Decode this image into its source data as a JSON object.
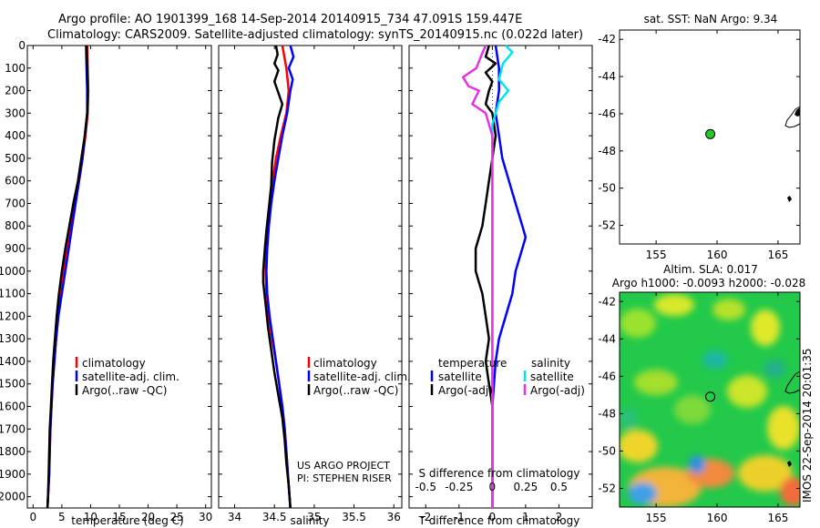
{
  "header": {
    "line1": "Argo profile: AO 1901399_168 14-Sep-2014 20140915_734 47.091S 159.447E",
    "line2": "Climatology: CARS2009. Satellite-adjusted climatology: synTS_20140915.nc (0.022d later)"
  },
  "colors": {
    "climatology": "#ff0000",
    "satellite": "#0000ff",
    "argo": "#000000",
    "salinity_satellite": "#00e5ee",
    "salinity_argo": "#e632e6",
    "argo_marker": "#22cc22"
  },
  "annotations": {
    "project": "US ARGO PROJECT",
    "pi": "PI: STEPHEN RISER",
    "s_diff_label": "S difference from climatology",
    "timestamp": "IMOS 22-Sep-2014 20:01:35"
  },
  "chart_data": [
    {
      "id": "temperature",
      "type": "line",
      "xlabel": "temperature (deg C)",
      "ylabel": "",
      "xlim": [
        -1,
        31
      ],
      "ylim": [
        2050,
        0
      ],
      "xticks": [
        0,
        5,
        10,
        15,
        20,
        25,
        30
      ],
      "yticks": [
        0,
        100,
        200,
        300,
        400,
        500,
        600,
        700,
        800,
        900,
        1000,
        1100,
        1200,
        1300,
        1400,
        1500,
        1600,
        1700,
        1800,
        1900,
        2000
      ],
      "legend": {
        "position": "lower-middle",
        "entries": [
          "climatology",
          "satellite-adj. clim.",
          "Argo(..raw -QC)"
        ]
      },
      "series": [
        {
          "name": "climatology",
          "color": "red",
          "points": [
            [
              9.4,
              0
            ],
            [
              9.5,
              100
            ],
            [
              9.6,
              200
            ],
            [
              9.5,
              300
            ],
            [
              9.1,
              400
            ],
            [
              8.6,
              500
            ],
            [
              8.0,
              600
            ],
            [
              7.3,
              700
            ],
            [
              6.6,
              800
            ],
            [
              6.0,
              900
            ],
            [
              5.3,
              1000
            ],
            [
              4.8,
              1100
            ],
            [
              4.3,
              1200
            ],
            [
              4.0,
              1300
            ],
            [
              3.7,
              1400
            ],
            [
              3.4,
              1500
            ],
            [
              3.2,
              1600
            ],
            [
              3.0,
              1700
            ],
            [
              2.9,
              1800
            ],
            [
              2.8,
              1900
            ],
            [
              2.6,
              2000
            ],
            [
              2.5,
              2050
            ]
          ]
        },
        {
          "name": "satellite-adj. clim.",
          "color": "blue",
          "points": [
            [
              9.2,
              0
            ],
            [
              9.3,
              100
            ],
            [
              9.4,
              200
            ],
            [
              9.4,
              300
            ],
            [
              9.0,
              400
            ],
            [
              8.6,
              500
            ],
            [
              8.0,
              600
            ],
            [
              7.4,
              700
            ],
            [
              6.8,
              800
            ],
            [
              6.2,
              900
            ],
            [
              5.6,
              1000
            ],
            [
              5.0,
              1100
            ],
            [
              4.4,
              1200
            ],
            [
              4.0,
              1300
            ],
            [
              3.7,
              1400
            ],
            [
              3.4,
              1500
            ],
            [
              3.2,
              1600
            ],
            [
              3.0,
              1700
            ],
            [
              2.9,
              1800
            ],
            [
              2.8,
              1900
            ],
            [
              2.6,
              2000
            ],
            [
              2.5,
              2050
            ]
          ]
        },
        {
          "name": "Argo(..raw -QC)",
          "color": "black",
          "points": [
            [
              9.3,
              0
            ],
            [
              9.4,
              100
            ],
            [
              9.5,
              200
            ],
            [
              9.4,
              300
            ],
            [
              9.0,
              400
            ],
            [
              8.4,
              500
            ],
            [
              7.8,
              600
            ],
            [
              7.0,
              700
            ],
            [
              6.3,
              800
            ],
            [
              5.6,
              900
            ],
            [
              5.0,
              1000
            ],
            [
              4.5,
              1100
            ],
            [
              4.1,
              1200
            ],
            [
              3.8,
              1300
            ],
            [
              3.5,
              1400
            ],
            [
              3.3,
              1500
            ],
            [
              3.1,
              1600
            ],
            [
              2.9,
              1700
            ],
            [
              2.8,
              1800
            ],
            [
              2.7,
              1900
            ],
            [
              2.6,
              2000
            ],
            [
              2.5,
              2050
            ]
          ]
        }
      ]
    },
    {
      "id": "salinity",
      "type": "line",
      "xlabel": "salinity",
      "ylabel": "",
      "xlim": [
        33.8,
        36.1
      ],
      "ylim": [
        2050,
        0
      ],
      "xticks": [
        34,
        34.5,
        35,
        35.5,
        36
      ],
      "legend": {
        "position": "lower-right",
        "entries": [
          "climatology",
          "satellite-adj. clim.",
          "Argo(..raw -QC)"
        ]
      },
      "series": [
        {
          "name": "climatology",
          "color": "red",
          "points": [
            [
              34.6,
              0
            ],
            [
              34.65,
              100
            ],
            [
              34.68,
              200
            ],
            [
              34.65,
              300
            ],
            [
              34.58,
              400
            ],
            [
              34.52,
              500
            ],
            [
              34.48,
              600
            ],
            [
              34.45,
              700
            ],
            [
              34.42,
              800
            ],
            [
              34.4,
              900
            ],
            [
              34.39,
              1000
            ],
            [
              34.4,
              1100
            ],
            [
              34.43,
              1200
            ],
            [
              34.47,
              1300
            ],
            [
              34.52,
              1400
            ],
            [
              34.56,
              1500
            ],
            [
              34.6,
              1600
            ],
            [
              34.63,
              1700
            ],
            [
              34.65,
              1800
            ],
            [
              34.67,
              1900
            ],
            [
              34.69,
              2000
            ],
            [
              34.7,
              2050
            ]
          ]
        },
        {
          "name": "satellite-adj. clim.",
          "color": "blue",
          "points": [
            [
              34.7,
              0
            ],
            [
              34.74,
              50
            ],
            [
              34.68,
              100
            ],
            [
              34.73,
              150
            ],
            [
              34.7,
              200
            ],
            [
              34.66,
              300
            ],
            [
              34.6,
              400
            ],
            [
              34.55,
              500
            ],
            [
              34.5,
              600
            ],
            [
              34.46,
              700
            ],
            [
              34.43,
              800
            ],
            [
              34.41,
              900
            ],
            [
              34.4,
              1000
            ],
            [
              34.41,
              1100
            ],
            [
              34.44,
              1200
            ],
            [
              34.48,
              1300
            ],
            [
              34.52,
              1400
            ],
            [
              34.56,
              1500
            ],
            [
              34.6,
              1600
            ],
            [
              34.63,
              1700
            ],
            [
              34.65,
              1800
            ],
            [
              34.67,
              1900
            ],
            [
              34.69,
              2000
            ],
            [
              34.7,
              2050
            ]
          ]
        },
        {
          "name": "Argo(..raw -QC)",
          "color": "black",
          "points": [
            [
              34.52,
              0
            ],
            [
              34.54,
              40
            ],
            [
              34.5,
              80
            ],
            [
              34.55,
              110
            ],
            [
              34.5,
              160
            ],
            [
              34.57,
              230
            ],
            [
              34.6,
              260
            ],
            [
              34.55,
              320
            ],
            [
              34.5,
              420
            ],
            [
              34.47,
              520
            ],
            [
              34.46,
              620
            ],
            [
              34.43,
              720
            ],
            [
              34.4,
              820
            ],
            [
              34.38,
              900
            ],
            [
              34.37,
              950
            ],
            [
              34.36,
              1000
            ],
            [
              34.36,
              1050
            ],
            [
              34.39,
              1150
            ],
            [
              34.42,
              1250
            ],
            [
              34.46,
              1350
            ],
            [
              34.5,
              1450
            ],
            [
              34.55,
              1550
            ],
            [
              34.6,
              1650
            ],
            [
              34.63,
              1750
            ],
            [
              34.65,
              1850
            ],
            [
              34.68,
              1950
            ],
            [
              34.7,
              2050
            ]
          ]
        }
      ]
    },
    {
      "id": "differences",
      "type": "line",
      "xlabel": "T difference from climatology",
      "x2label": "S difference from climatology",
      "ylabel": "",
      "xlim": [
        -2.5,
        3.0
      ],
      "x2lim": [
        -0.625,
        0.75
      ],
      "ylim": [
        2050,
        0
      ],
      "xticks": [
        -2,
        -1,
        0,
        1,
        2
      ],
      "x2ticks": [
        -0.5,
        -0.25,
        0,
        0.25,
        0.5
      ],
      "x2ticklabels": [
        "-0.5",
        "-0.25",
        "0",
        "0.25",
        "0.5"
      ],
      "legend": {
        "position": "lower-middle",
        "headers": [
          "temperature",
          "salinity"
        ],
        "entries": [
          "satellite",
          "Argo(-adj)",
          "satellite",
          "Argo(-adj)"
        ]
      },
      "series": [
        {
          "name": "satellite",
          "group": "temperature",
          "color": "blue",
          "points": [
            [
              0.1,
              0
            ],
            [
              0.2,
              100
            ],
            [
              0.2,
              200
            ],
            [
              0.1,
              300
            ],
            [
              0.2,
              400
            ],
            [
              0.3,
              500
            ],
            [
              0.5,
              600
            ],
            [
              0.7,
              700
            ],
            [
              0.9,
              800
            ],
            [
              1.0,
              850
            ],
            [
              0.9,
              900
            ],
            [
              0.8,
              950
            ],
            [
              0.7,
              1000
            ],
            [
              0.6,
              1100
            ],
            [
              0.4,
              1200
            ],
            [
              0.2,
              1300
            ],
            [
              0.1,
              1400
            ],
            [
              0.0,
              1600
            ],
            [
              0.0,
              2050
            ]
          ]
        },
        {
          "name": "Argo(-adj)",
          "group": "temperature",
          "color": "black",
          "points": [
            [
              -0.1,
              0
            ],
            [
              -0.2,
              50
            ],
            [
              0.1,
              80
            ],
            [
              -0.2,
              120
            ],
            [
              0.0,
              160
            ],
            [
              -0.1,
              200
            ],
            [
              -0.2,
              260
            ],
            [
              0.0,
              300
            ],
            [
              0.1,
              400
            ],
            [
              0.0,
              500
            ],
            [
              -0.1,
              600
            ],
            [
              -0.2,
              700
            ],
            [
              -0.3,
              800
            ],
            [
              -0.5,
              900
            ],
            [
              -0.5,
              1000
            ],
            [
              -0.3,
              1100
            ],
            [
              -0.2,
              1200
            ],
            [
              -0.1,
              1300
            ],
            [
              -0.2,
              1400
            ],
            [
              -0.1,
              1500
            ],
            [
              0.0,
              1600
            ],
            [
              0.0,
              2050
            ]
          ]
        },
        {
          "name": "satellite",
          "group": "salinity",
          "color": "cyan",
          "points": [
            [
              0.1,
              0
            ],
            [
              0.15,
              30
            ],
            [
              0.08,
              80
            ],
            [
              0.05,
              150
            ],
            [
              0.12,
              200
            ],
            [
              0.05,
              250
            ],
            [
              0.0,
              350
            ],
            [
              0.0,
              2050
            ]
          ]
        },
        {
          "name": "Argo(-adj)",
          "group": "salinity",
          "color": "magenta",
          "points": [
            [
              -0.05,
              0
            ],
            [
              -0.08,
              40
            ],
            [
              -0.12,
              100
            ],
            [
              -0.22,
              140
            ],
            [
              -0.18,
              180
            ],
            [
              -0.1,
              200
            ],
            [
              -0.15,
              260
            ],
            [
              -0.05,
              300
            ],
            [
              0.0,
              400
            ],
            [
              0.0,
              2050
            ]
          ]
        }
      ]
    },
    {
      "id": "sst-map",
      "type": "scatter",
      "title": "sat. SST: NaN Argo: 9.34",
      "xlim": [
        152.0,
        166.8
      ],
      "ylim": [
        -53.0,
        -41.5
      ],
      "xticks": [
        155,
        160,
        165
      ],
      "yticks": [
        -42,
        -44,
        -46,
        -48,
        -50,
        -52
      ],
      "points": [
        {
          "x": 159.447,
          "y": -47.091
        }
      ]
    },
    {
      "id": "sla-map",
      "type": "heatmap",
      "title": "Altim. SLA: 0.017",
      "subtitle": "Argo h1000: -0.0093 h2000: -0.028",
      "xlim": [
        152.0,
        166.8
      ],
      "ylim": [
        -53.0,
        -41.5
      ],
      "xticks": [
        155,
        160,
        165
      ],
      "yticks": [
        -42,
        -44,
        -46,
        -48,
        -50,
        -52
      ],
      "points": [
        {
          "x": 159.447,
          "y": -47.091
        }
      ]
    }
  ]
}
